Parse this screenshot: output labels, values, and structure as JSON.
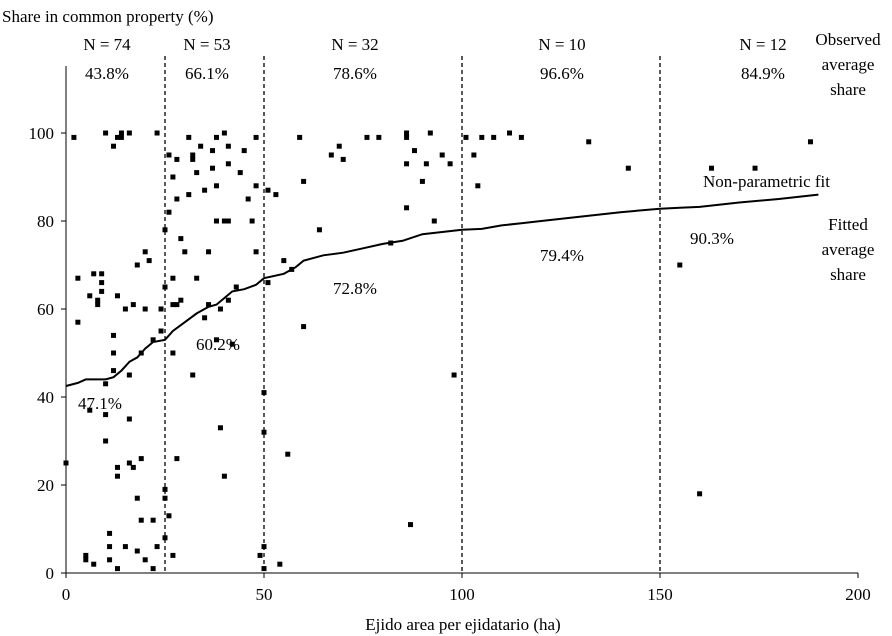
{
  "chart_data": {
    "type": "scatter",
    "xlabel": "Ejido area per ejidatario (ha)",
    "ylabel": "Share in common property (%)",
    "xlim": [
      0,
      200
    ],
    "ylim": [
      0,
      115
    ],
    "x_ticks": [
      "0",
      "50",
      "100",
      "150",
      "200"
    ],
    "y_ticks": [
      "0",
      "20",
      "40",
      "60",
      "80",
      "100"
    ],
    "grid": false,
    "dividers": [
      25,
      50,
      100,
      150
    ],
    "groups": [
      {
        "n": "N = 74",
        "observed": "43.8%",
        "fitted": "47.1%"
      },
      {
        "n": "N = 53",
        "observed": "66.1%",
        "fitted": "60.2%"
      },
      {
        "n": "N = 32",
        "observed": "78.6%",
        "fitted": "72.8%"
      },
      {
        "n": "N = 10",
        "observed": "96.6%",
        "fitted": "79.4%"
      },
      {
        "n": "N = 12",
        "observed": "84.9%",
        "fitted": "90.3%"
      }
    ],
    "annotations": {
      "observed_label": [
        "Observed",
        "average",
        "share"
      ],
      "fit_label": "Non-parametric fit",
      "fitted_label": [
        "Fitted",
        "average",
        "share"
      ]
    },
    "series": [
      {
        "kind": "points",
        "points": [
          [
            0,
            25
          ],
          [
            2,
            99
          ],
          [
            3,
            57
          ],
          [
            3,
            67
          ],
          [
            5,
            4
          ],
          [
            5,
            3
          ],
          [
            6,
            63
          ],
          [
            6,
            37
          ],
          [
            7,
            2
          ],
          [
            7,
            68
          ],
          [
            8,
            61
          ],
          [
            8,
            62
          ],
          [
            9,
            66
          ],
          [
            9,
            64
          ],
          [
            9,
            68
          ],
          [
            10,
            100
          ],
          [
            10,
            43
          ],
          [
            10,
            36
          ],
          [
            10,
            30
          ],
          [
            11,
            6
          ],
          [
            11,
            9
          ],
          [
            11,
            3
          ],
          [
            12,
            54
          ],
          [
            12,
            50
          ],
          [
            12,
            46
          ],
          [
            12,
            97
          ],
          [
            13,
            99
          ],
          [
            13,
            63
          ],
          [
            13,
            24
          ],
          [
            13,
            22
          ],
          [
            13,
            1
          ],
          [
            14,
            100
          ],
          [
            14,
            99
          ],
          [
            15,
            6
          ],
          [
            15,
            60
          ],
          [
            16,
            100
          ],
          [
            16,
            45
          ],
          [
            16,
            35
          ],
          [
            16,
            25
          ],
          [
            17,
            61
          ],
          [
            17,
            24
          ],
          [
            18,
            70
          ],
          [
            18,
            17
          ],
          [
            18,
            5
          ],
          [
            19,
            12
          ],
          [
            19,
            26
          ],
          [
            19,
            50
          ],
          [
            20,
            73
          ],
          [
            20,
            60
          ],
          [
            20,
            3
          ],
          [
            21,
            71
          ],
          [
            22,
            1
          ],
          [
            22,
            53
          ],
          [
            22,
            12
          ],
          [
            23,
            6
          ],
          [
            23,
            100
          ],
          [
            24,
            60
          ],
          [
            24,
            55
          ],
          [
            25,
            78
          ],
          [
            25,
            65
          ],
          [
            25,
            17
          ],
          [
            25,
            19
          ],
          [
            25,
            8
          ],
          [
            26,
            95
          ],
          [
            26,
            82
          ],
          [
            26,
            13
          ],
          [
            27,
            90
          ],
          [
            27,
            67
          ],
          [
            27,
            61
          ],
          [
            27,
            50
          ],
          [
            27,
            4
          ],
          [
            28,
            94
          ],
          [
            28,
            85
          ],
          [
            28,
            26
          ],
          [
            28,
            61
          ],
          [
            29,
            76
          ],
          [
            29,
            62
          ],
          [
            30,
            73
          ],
          [
            31,
            99
          ],
          [
            31,
            86
          ],
          [
            32,
            95
          ],
          [
            32,
            45
          ],
          [
            32,
            94
          ],
          [
            33,
            91
          ],
          [
            33,
            67
          ],
          [
            34,
            97
          ],
          [
            35,
            58
          ],
          [
            35,
            87
          ],
          [
            36,
            73
          ],
          [
            36,
            61
          ],
          [
            37,
            96
          ],
          [
            37,
            92
          ],
          [
            38,
            80
          ],
          [
            38,
            88
          ],
          [
            38,
            99
          ],
          [
            38,
            53
          ],
          [
            39,
            33
          ],
          [
            39,
            60
          ],
          [
            40,
            100
          ],
          [
            40,
            80
          ],
          [
            40,
            22
          ],
          [
            41,
            97
          ],
          [
            41,
            93
          ],
          [
            41,
            80
          ],
          [
            41,
            62
          ],
          [
            42,
            52
          ],
          [
            43,
            65
          ],
          [
            44,
            91
          ],
          [
            45,
            96
          ],
          [
            46,
            85
          ],
          [
            47,
            80
          ],
          [
            48,
            99
          ],
          [
            48,
            73
          ],
          [
            48,
            88
          ],
          [
            49,
            4
          ],
          [
            50,
            41
          ],
          [
            50,
            32
          ],
          [
            50,
            6
          ],
          [
            50,
            1
          ],
          [
            51,
            66
          ],
          [
            51,
            87
          ],
          [
            53,
            86
          ],
          [
            54,
            2
          ],
          [
            55,
            71
          ],
          [
            56,
            27
          ],
          [
            57,
            69
          ],
          [
            59,
            99
          ],
          [
            60,
            89
          ],
          [
            60,
            56
          ],
          [
            64,
            78
          ],
          [
            67,
            95
          ],
          [
            69,
            97
          ],
          [
            70,
            94
          ],
          [
            76,
            99
          ],
          [
            79,
            99
          ],
          [
            82,
            75
          ],
          [
            86,
            99
          ],
          [
            86,
            93
          ],
          [
            86,
            100
          ],
          [
            86,
            83
          ],
          [
            87,
            11
          ],
          [
            88,
            96
          ],
          [
            90,
            89
          ],
          [
            91,
            93
          ],
          [
            92,
            100
          ],
          [
            93,
            80
          ],
          [
            95,
            95
          ],
          [
            97,
            93
          ],
          [
            98,
            45
          ],
          [
            101,
            99
          ],
          [
            103,
            95
          ],
          [
            104,
            88
          ],
          [
            105,
            99
          ],
          [
            108,
            99
          ],
          [
            112,
            100
          ],
          [
            115,
            99
          ],
          [
            132,
            98
          ],
          [
            142,
            92
          ],
          [
            155,
            70
          ],
          [
            160,
            18
          ],
          [
            163,
            92
          ],
          [
            174,
            92
          ],
          [
            188,
            98
          ]
        ]
      },
      {
        "name": "Non-parametric fit",
        "kind": "line",
        "points": [
          [
            0,
            42.5
          ],
          [
            3,
            43.2
          ],
          [
            5,
            44
          ],
          [
            7,
            44
          ],
          [
            10,
            44
          ],
          [
            12,
            44.5
          ],
          [
            14,
            46
          ],
          [
            16,
            48
          ],
          [
            18,
            49
          ],
          [
            20,
            51
          ],
          [
            22,
            52.5
          ],
          [
            25,
            53
          ],
          [
            27,
            55
          ],
          [
            30,
            57
          ],
          [
            33,
            59
          ],
          [
            36,
            60.5
          ],
          [
            38,
            61
          ],
          [
            40,
            62.5
          ],
          [
            42,
            64
          ],
          [
            45,
            64.5
          ],
          [
            48,
            65.5
          ],
          [
            50,
            67
          ],
          [
            55,
            68
          ],
          [
            58,
            69.5
          ],
          [
            60,
            71
          ],
          [
            65,
            72.2
          ],
          [
            70,
            72.8
          ],
          [
            75,
            73.8
          ],
          [
            80,
            74.8
          ],
          [
            85,
            75.5
          ],
          [
            90,
            77
          ],
          [
            95,
            77.5
          ],
          [
            100,
            78
          ],
          [
            105,
            78.2
          ],
          [
            110,
            79
          ],
          [
            115,
            79.5
          ],
          [
            120,
            80
          ],
          [
            130,
            81
          ],
          [
            140,
            82
          ],
          [
            150,
            82.8
          ],
          [
            155,
            83
          ],
          [
            160,
            83.2
          ],
          [
            170,
            84.2
          ],
          [
            180,
            85
          ],
          [
            190,
            86
          ]
        ]
      }
    ]
  }
}
